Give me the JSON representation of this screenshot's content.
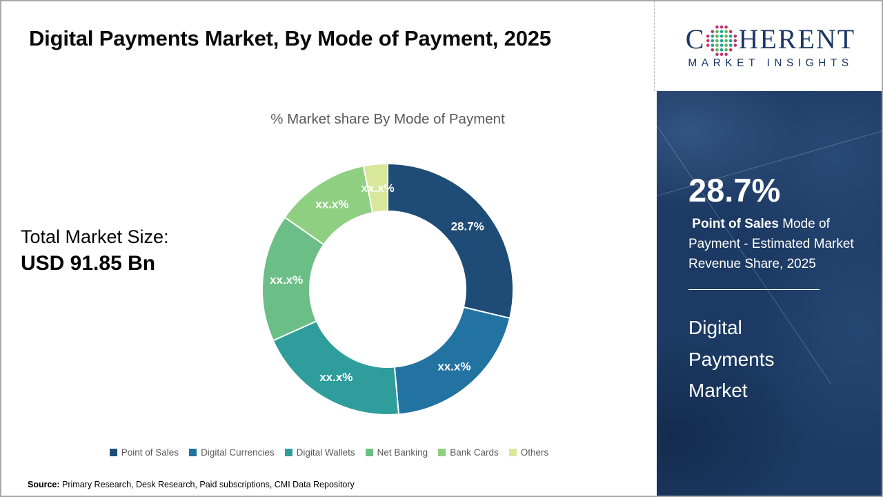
{
  "header": {
    "title": "Digital Payments Market, By Mode of Payment, 2025"
  },
  "logo": {
    "line1_pre": "C",
    "line1_post": "HERENT",
    "line2": "MARKET INSIGHTS",
    "navy": "#1b3865",
    "globe_teal": "#1fa0a0",
    "globe_green": "#5fb54a",
    "globe_magenta": "#c2356f"
  },
  "chart_data": {
    "type": "pie",
    "subtype": "donut",
    "title": "% Market share By Mode of Payment",
    "inner_radius_ratio": 0.62,
    "legend_position": "bottom",
    "series": [
      {
        "label": "Point of Sales",
        "value": 28.7,
        "display": "28.7%",
        "color": "#1e4c77"
      },
      {
        "label": "Digital Currencies",
        "value": 19.9,
        "display": "xx.x%",
        "color": "#2273a2"
      },
      {
        "label": "Digital Wallets",
        "value": 19.7,
        "display": "xx.x%",
        "color": "#2f9d9b"
      },
      {
        "label": "Net Banking",
        "value": 16.4,
        "display": "xx.x%",
        "color": "#6bbe86"
      },
      {
        "label": "Bank Cards",
        "value": 12.2,
        "display": "xx.x%",
        "color": "#8fcf81"
      },
      {
        "label": "Others",
        "value": 3.1,
        "display": "xx.x%",
        "color": "#d9e79b"
      }
    ]
  },
  "totals": {
    "label": "Total Market Size:",
    "value": "USD 91.85 Bn"
  },
  "sidebar": {
    "bg_color": "#1c3a63",
    "stat_value": "28.7%",
    "desc_bold": " Point of Sales",
    "desc_rest": " Mode of Payment - Estimated Market Revenue Share, 2025",
    "market_title": "Digital Payments Market"
  },
  "source": {
    "label": "Source:",
    "text": " Primary Research, Desk Research, Paid subscriptions, CMI Data Repository"
  }
}
